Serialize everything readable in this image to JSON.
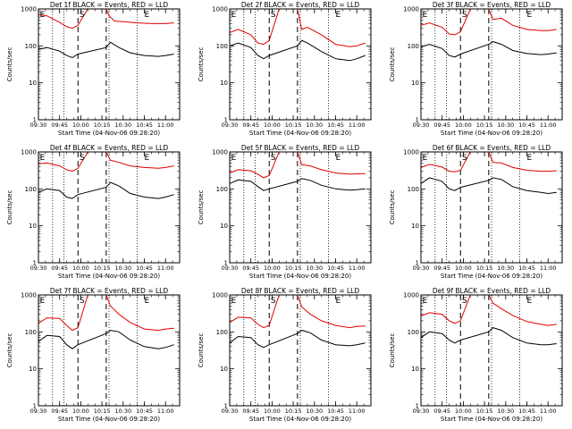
{
  "figure": {
    "colors": {
      "events": "#000000",
      "lld": "#dd0000",
      "axes": "#000000"
    }
  },
  "chart_data": [
    {
      "type": "line",
      "title": "Det 1f BLACK = Events, RED = LLD",
      "xlabel": "Start Time (04-Nov-06 09:28:20)",
      "ylabel": "Counts/sec",
      "yscale": "log",
      "ylim": [
        1,
        1000
      ],
      "ytick_labels": [
        "1",
        "10",
        "100",
        "1000"
      ],
      "xlim": [
        "09:30",
        "11:10"
      ],
      "xtick_labels": [
        "09:30",
        "09:45",
        "10:00",
        "10:15",
        "10:30",
        "10:45",
        "11:00"
      ],
      "grid": false,
      "annotations": [
        "E",
        "S",
        "E"
      ],
      "series": [
        {
          "name": "LLD",
          "color": "#dd0000",
          "x": [
            "09:30",
            "09:36",
            "09:45",
            "09:50",
            "09:54",
            "09:58",
            "10:05",
            "10:18",
            "10:20",
            "10:24",
            "10:30",
            "10:40",
            "10:50",
            "11:00",
            "11:06"
          ],
          "y": [
            700,
            650,
            430,
            330,
            300,
            360,
            1000,
            1000,
            650,
            470,
            450,
            420,
            400,
            400,
            420
          ]
        },
        {
          "name": "Events",
          "color": "#000000",
          "x": [
            "09:30",
            "09:36",
            "09:45",
            "09:50",
            "09:54",
            "09:58",
            "10:18",
            "10:21",
            "10:27",
            "10:35",
            "10:45",
            "10:55",
            "11:00",
            "11:06"
          ],
          "y": [
            80,
            90,
            72,
            55,
            48,
            60,
            90,
            125,
            90,
            65,
            55,
            52,
            55,
            60
          ]
        }
      ]
    },
    {
      "type": "line",
      "title": "Det 2f BLACK = Events, RED = LLD",
      "xlabel": "Start Time (04-Nov-06 09:28:20)",
      "ylabel": "Counts/sec",
      "yscale": "log",
      "ylim": [
        1,
        1000
      ],
      "ytick_labels": [
        "1",
        "10",
        "100",
        "1000"
      ],
      "xlim": [
        "09:30",
        "11:10"
      ],
      "xtick_labels": [
        "09:30",
        "09:45",
        "10:00",
        "10:15",
        "10:30",
        "10:45",
        "11:00"
      ],
      "grid": false,
      "annotations": [
        "E",
        "S",
        "E"
      ],
      "series": [
        {
          "name": "LLD",
          "color": "#dd0000",
          "x": [
            "09:30",
            "09:36",
            "09:45",
            "09:50",
            "09:54",
            "09:58",
            "10:05",
            "10:18",
            "10:21",
            "10:25",
            "10:35",
            "10:45",
            "10:55",
            "11:00",
            "11:06"
          ],
          "y": [
            230,
            280,
            200,
            120,
            110,
            140,
            1000,
            1000,
            280,
            320,
            200,
            110,
            95,
            100,
            120
          ]
        },
        {
          "name": "Events",
          "color": "#000000",
          "x": [
            "09:30",
            "09:36",
            "09:45",
            "09:50",
            "09:54",
            "09:58",
            "10:18",
            "10:21",
            "10:25",
            "10:35",
            "10:45",
            "10:55",
            "11:00",
            "11:06"
          ],
          "y": [
            100,
            120,
            90,
            55,
            45,
            55,
            100,
            140,
            120,
            70,
            45,
            40,
            45,
            55
          ]
        }
      ]
    },
    {
      "type": "line",
      "title": "Det 3f BLACK = Events, RED = LLD",
      "xlabel": "Start Time (04-Nov-06 09:28:20)",
      "ylabel": "Counts/sec",
      "yscale": "log",
      "ylim": [
        1,
        1000
      ],
      "ytick_labels": [
        "1",
        "10",
        "100",
        "1000"
      ],
      "xlim": [
        "09:30",
        "11:10"
      ],
      "xtick_labels": [
        "09:30",
        "09:45",
        "10:00",
        "10:15",
        "10:30",
        "10:45",
        "11:00"
      ],
      "grid": false,
      "annotations": [
        "E",
        "S",
        "E"
      ],
      "series": [
        {
          "name": "LLD",
          "color": "#dd0000",
          "x": [
            "09:30",
            "09:36",
            "09:45",
            "09:50",
            "09:54",
            "09:58",
            "10:05",
            "10:18",
            "10:21",
            "10:27",
            "10:35",
            "10:45",
            "10:55",
            "11:00",
            "11:06"
          ],
          "y": [
            360,
            420,
            320,
            210,
            200,
            240,
            1000,
            1000,
            520,
            560,
            360,
            280,
            260,
            260,
            280
          ]
        },
        {
          "name": "Events",
          "color": "#000000",
          "x": [
            "09:30",
            "09:36",
            "09:45",
            "09:50",
            "09:54",
            "09:58",
            "10:18",
            "10:21",
            "10:27",
            "10:35",
            "10:45",
            "10:55",
            "11:00",
            "11:06"
          ],
          "y": [
            95,
            110,
            85,
            55,
            50,
            60,
            110,
            130,
            110,
            75,
            62,
            58,
            60,
            65
          ]
        }
      ]
    },
    {
      "type": "line",
      "title": "Det 4f BLACK = Events, RED = LLD",
      "xlabel": "Start Time (04-Nov-06 09:28:20)",
      "ylabel": "Counts/sec",
      "yscale": "log",
      "ylim": [
        1,
        1000
      ],
      "ytick_labels": [
        "1",
        "10",
        "100",
        "1000"
      ],
      "xlim": [
        "09:30",
        "11:10"
      ],
      "xtick_labels": [
        "09:30",
        "09:45",
        "10:00",
        "10:15",
        "10:30",
        "10:45",
        "11:00"
      ],
      "grid": false,
      "annotations": [
        "E",
        "S",
        "E"
      ],
      "series": [
        {
          "name": "LLD",
          "color": "#dd0000",
          "x": [
            "09:30",
            "09:36",
            "09:45",
            "09:50",
            "09:54",
            "09:58",
            "10:05",
            "10:18",
            "10:21",
            "10:27",
            "10:35",
            "10:45",
            "10:55",
            "11:00",
            "11:06"
          ],
          "y": [
            480,
            500,
            420,
            330,
            300,
            360,
            1000,
            1000,
            600,
            520,
            420,
            380,
            360,
            380,
            420
          ]
        },
        {
          "name": "Events",
          "color": "#000000",
          "x": [
            "09:30",
            "09:36",
            "09:45",
            "09:50",
            "09:54",
            "09:58",
            "10:18",
            "10:21",
            "10:27",
            "10:35",
            "10:45",
            "10:55",
            "11:00",
            "11:06"
          ],
          "y": [
            80,
            100,
            90,
            60,
            55,
            70,
            110,
            150,
            120,
            75,
            60,
            55,
            60,
            70
          ]
        }
      ]
    },
    {
      "type": "line",
      "title": "Det 5f BLACK = Events, RED = LLD",
      "xlabel": "Start Time (04-Nov-06 09:28:20)",
      "ylabel": "Counts/sec",
      "yscale": "log",
      "ylim": [
        1,
        1000
      ],
      "ytick_labels": [
        "1",
        "10",
        "100",
        "1000"
      ],
      "xlim": [
        "09:30",
        "11:10"
      ],
      "xtick_labels": [
        "09:30",
        "09:45",
        "10:00",
        "10:15",
        "10:30",
        "10:45",
        "11:00"
      ],
      "grid": false,
      "annotations": [
        "E",
        "S",
        "E"
      ],
      "series": [
        {
          "name": "LLD",
          "color": "#dd0000",
          "x": [
            "09:30",
            "09:36",
            "09:45",
            "09:50",
            "09:54",
            "09:58",
            "10:05",
            "10:18",
            "10:21",
            "10:27",
            "10:35",
            "10:45",
            "10:55",
            "11:00",
            "11:06"
          ],
          "y": [
            270,
            330,
            310,
            250,
            200,
            230,
            1000,
            1000,
            450,
            420,
            330,
            270,
            250,
            255,
            260
          ]
        },
        {
          "name": "Events",
          "color": "#000000",
          "x": [
            "09:30",
            "09:36",
            "09:45",
            "09:50",
            "09:54",
            "09:58",
            "10:18",
            "10:21",
            "10:27",
            "10:35",
            "10:45",
            "10:55",
            "11:00",
            "11:06"
          ],
          "y": [
            140,
            175,
            160,
            115,
            90,
            100,
            160,
            190,
            170,
            125,
            100,
            92,
            95,
            100
          ]
        }
      ]
    },
    {
      "type": "line",
      "title": "Det 6f BLACK = Events, RED = LLD",
      "xlabel": "Start Time (04-Nov-06 09:28:20)",
      "ylabel": "Counts/sec",
      "yscale": "log",
      "ylim": [
        1,
        1000
      ],
      "ytick_labels": [
        "1",
        "10",
        "100",
        "1000"
      ],
      "xlim": [
        "09:30",
        "11:10"
      ],
      "xtick_labels": [
        "09:30",
        "09:45",
        "10:00",
        "10:15",
        "10:30",
        "10:45",
        "11:00"
      ],
      "grid": false,
      "annotations": [
        "E",
        "S",
        "E"
      ],
      "series": [
        {
          "name": "LLD",
          "color": "#dd0000",
          "x": [
            "09:30",
            "09:36",
            "09:45",
            "09:50",
            "09:54",
            "09:58",
            "10:05",
            "10:18",
            "10:21",
            "10:27",
            "10:35",
            "10:45",
            "10:55",
            "11:00",
            "11:06"
          ],
          "y": [
            380,
            460,
            390,
            300,
            290,
            320,
            1000,
            1000,
            520,
            500,
            380,
            320,
            300,
            300,
            310
          ]
        },
        {
          "name": "Events",
          "color": "#000000",
          "x": [
            "09:30",
            "09:36",
            "09:45",
            "09:50",
            "09:54",
            "09:58",
            "10:18",
            "10:21",
            "10:27",
            "10:35",
            "10:45",
            "10:55",
            "11:00",
            "11:06"
          ],
          "y": [
            140,
            200,
            160,
            100,
            90,
            110,
            170,
            200,
            180,
            115,
            90,
            80,
            75,
            80
          ]
        }
      ]
    },
    {
      "type": "line",
      "title": "Det 7f BLACK = Events, RED = LLD",
      "xlabel": "Start Time (04-Nov-06 09:28:20)",
      "ylabel": "Counts/sec",
      "yscale": "log",
      "ylim": [
        1,
        1000
      ],
      "ytick_labels": [
        "1",
        "10",
        "100",
        "1000"
      ],
      "xlim": [
        "09:30",
        "11:10"
      ],
      "xtick_labels": [
        "09:30",
        "09:45",
        "10:00",
        "10:15",
        "10:30",
        "10:45",
        "11:00"
      ],
      "grid": false,
      "annotations": [
        "E",
        "S",
        "E"
      ],
      "series": [
        {
          "name": "LLD",
          "color": "#dd0000",
          "x": [
            "09:30",
            "09:36",
            "09:45",
            "09:50",
            "09:54",
            "09:58",
            "10:05",
            "10:18",
            "10:21",
            "10:27",
            "10:35",
            "10:45",
            "10:55",
            "11:00",
            "11:06"
          ],
          "y": [
            170,
            240,
            230,
            150,
            110,
            130,
            1000,
            1000,
            500,
            300,
            180,
            120,
            110,
            120,
            125
          ]
        },
        {
          "name": "Events",
          "color": "#000000",
          "x": [
            "09:30",
            "09:36",
            "09:45",
            "09:50",
            "09:54",
            "09:58",
            "10:18",
            "10:21",
            "10:27",
            "10:35",
            "10:45",
            "10:55",
            "11:00",
            "11:06"
          ],
          "y": [
            55,
            80,
            75,
            45,
            35,
            45,
            90,
            110,
            100,
            60,
            40,
            35,
            38,
            45
          ]
        }
      ]
    },
    {
      "type": "line",
      "title": "Det 8f BLACK = Events, RED = LLD",
      "xlabel": "Start Time (04-Nov-06 09:28:20)",
      "ylabel": "Counts/sec",
      "yscale": "log",
      "ylim": [
        1,
        1000
      ],
      "ytick_labels": [
        "1",
        "10",
        "100",
        "1000"
      ],
      "xlim": [
        "09:30",
        "11:10"
      ],
      "xtick_labels": [
        "09:30",
        "09:45",
        "10:00",
        "10:15",
        "10:30",
        "10:45",
        "11:00"
      ],
      "grid": false,
      "annotations": [
        "E",
        "S",
        "E"
      ],
      "series": [
        {
          "name": "LLD",
          "color": "#dd0000",
          "x": [
            "09:30",
            "09:36",
            "09:45",
            "09:50",
            "09:54",
            "09:58",
            "10:05",
            "10:18",
            "10:21",
            "10:27",
            "10:35",
            "10:45",
            "10:55",
            "11:00",
            "11:06"
          ],
          "y": [
            180,
            250,
            240,
            160,
            130,
            150,
            1000,
            1000,
            480,
            300,
            200,
            150,
            130,
            140,
            145
          ]
        },
        {
          "name": "Events",
          "color": "#000000",
          "x": [
            "09:30",
            "09:36",
            "09:45",
            "09:50",
            "09:54",
            "09:58",
            "10:18",
            "10:21",
            "10:27",
            "10:35",
            "10:45",
            "10:55",
            "11:00",
            "11:06"
          ],
          "y": [
            50,
            75,
            70,
            45,
            38,
            45,
            90,
            110,
            95,
            60,
            45,
            42,
            45,
            50
          ]
        }
      ]
    },
    {
      "type": "line",
      "title": "Det 9f BLACK = Events, RED = LLD",
      "xlabel": "Start Time (04-Nov-06 09:28:20)",
      "ylabel": "Counts/sec",
      "yscale": "log",
      "ylim": [
        1,
        1000
      ],
      "ytick_labels": [
        "1",
        "10",
        "100",
        "1000"
      ],
      "xlim": [
        "09:30",
        "11:10"
      ],
      "xtick_labels": [
        "09:30",
        "09:45",
        "10:00",
        "10:15",
        "10:30",
        "10:45",
        "11:00"
      ],
      "grid": false,
      "annotations": [
        "E",
        "S",
        "E"
      ],
      "series": [
        {
          "name": "LLD",
          "color": "#dd0000",
          "x": [
            "09:30",
            "09:36",
            "09:45",
            "09:50",
            "09:54",
            "09:58",
            "10:05",
            "10:18",
            "10:21",
            "10:27",
            "10:35",
            "10:45",
            "10:55",
            "11:00",
            "11:06"
          ],
          "y": [
            270,
            330,
            300,
            200,
            170,
            200,
            1000,
            1000,
            600,
            420,
            280,
            190,
            160,
            150,
            160
          ]
        },
        {
          "name": "Events",
          "color": "#000000",
          "x": [
            "09:30",
            "09:36",
            "09:45",
            "09:50",
            "09:54",
            "09:58",
            "10:18",
            "10:21",
            "10:27",
            "10:35",
            "10:45",
            "10:55",
            "11:00",
            "11:06"
          ],
          "y": [
            70,
            100,
            90,
            60,
            50,
            60,
            100,
            130,
            110,
            70,
            50,
            45,
            45,
            48
          ]
        }
      ]
    }
  ]
}
